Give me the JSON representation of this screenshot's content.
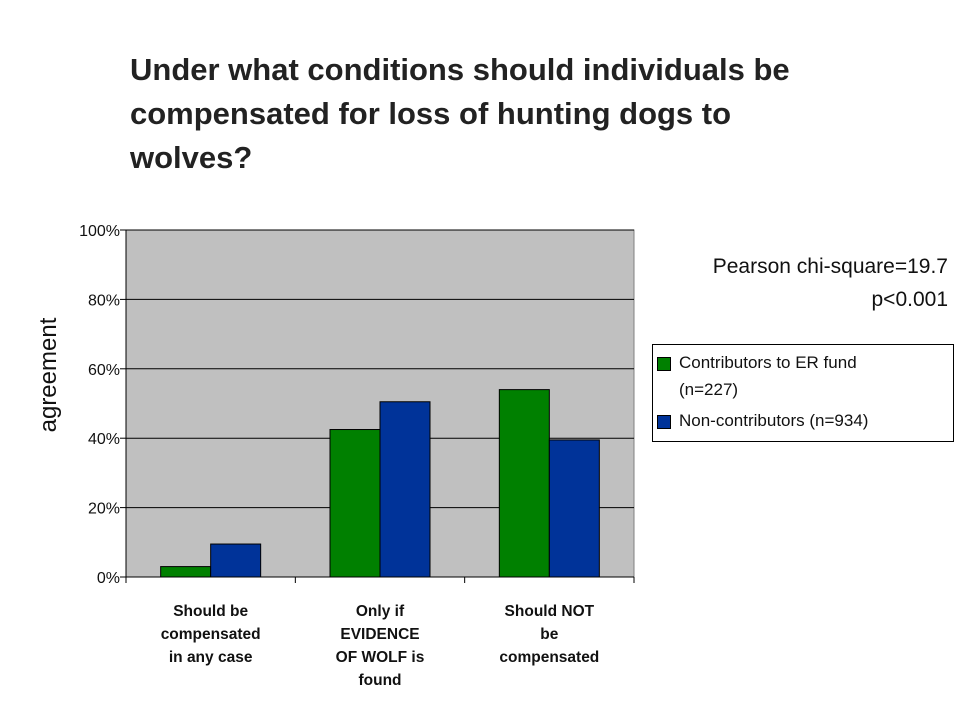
{
  "title_lines": [
    "Under what conditions should individuals be",
    "compensated for loss of hunting dogs to",
    "wolves?"
  ],
  "stats": {
    "line1": "Pearson chi-square=19.7",
    "line2": "p<0.001"
  },
  "chart_data": {
    "type": "bar",
    "title": "Under what conditions should individuals be compensated for loss of hunting dogs to wolves?",
    "ylabel": "agreement",
    "xlabel": "",
    "ylim": [
      0,
      100
    ],
    "yticks": [
      "0%",
      "20%",
      "40%",
      "60%",
      "80%",
      "100%"
    ],
    "grid": true,
    "plot_background": "#c0c0c0",
    "legend_position": "right",
    "categories": [
      "Should be compensated in any case",
      "Only if EVIDENCE OF WOLF is found",
      "Should NOT be compensated"
    ],
    "category_label_lines": [
      [
        "Should be",
        "compensated",
        "in any case"
      ],
      [
        "Only if",
        "EVIDENCE",
        "OF WOLF is",
        "found"
      ],
      [
        "Should NOT",
        "be",
        "compensated"
      ]
    ],
    "series": [
      {
        "name": "Contributors to ER fund (n=227)",
        "legend_lines": [
          "Contributors to ER fund",
          "(n=227)"
        ],
        "color": "#008000",
        "values": [
          3,
          42.5,
          54
        ]
      },
      {
        "name": "Non-contributors (n=934)",
        "legend_lines": [
          "Non-contributors (n=934)"
        ],
        "color": "#003399",
        "values": [
          9.5,
          50.5,
          39.5
        ]
      }
    ]
  }
}
